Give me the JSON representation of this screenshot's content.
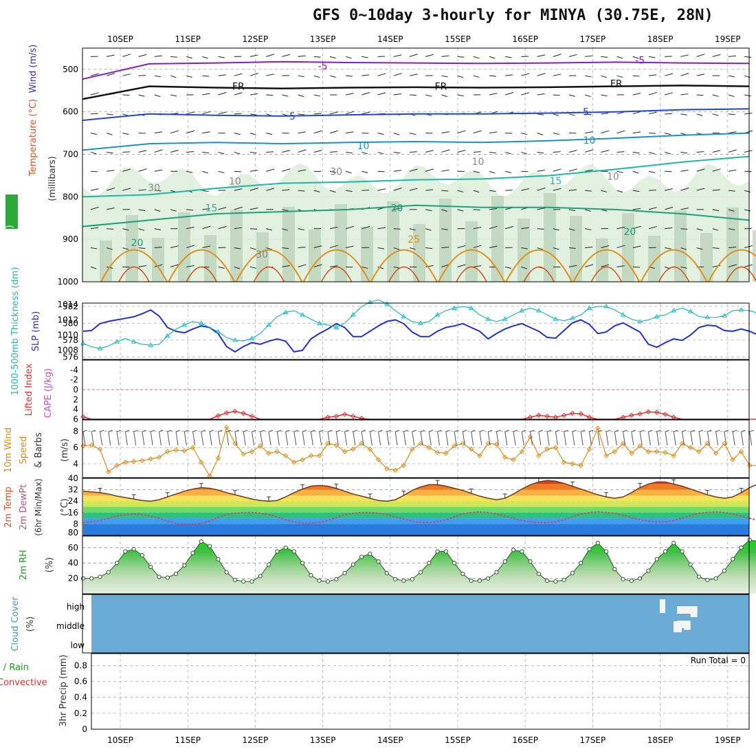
{
  "title": "GFS 0~10day 3-hourly for MINYA (30.75E, 28N)",
  "dates": [
    "10SEP",
    "11SEP",
    "12SEP",
    "13SEP",
    "14SEP",
    "15SEP",
    "16SEP",
    "17SEP",
    "18SEP",
    "19SEP"
  ],
  "chart_data": [
    {
      "id": "upper",
      "type": "contour",
      "title": "Upper air cross-section",
      "labels": {
        "wind": "Wind (m/s)",
        "temperature": "Temperature (°C)",
        "pressure": "(millibars)",
        "rh": "RH (%)"
      },
      "ylim": [
        1000,
        450
      ],
      "yticks": [
        500,
        600,
        700,
        800,
        900,
        1000
      ],
      "isotherms": [
        {
          "value": -5,
          "label": "-5",
          "color": "#8a1cb8",
          "pressure": [
            523,
            487,
            485,
            482,
            484,
            485,
            486,
            485,
            483,
            485,
            486
          ]
        },
        {
          "value": 0,
          "label": "FR",
          "color": "#111111",
          "pressure": [
            570,
            540,
            543,
            545,
            543,
            542,
            543,
            542,
            540,
            538,
            540
          ]
        },
        {
          "value": 5,
          "label": "5",
          "color": "#1e46d2",
          "pressure": [
            620,
            605,
            608,
            610,
            607,
            605,
            605,
            603,
            600,
            595,
            593
          ]
        },
        {
          "value": 10,
          "label": "10",
          "color": "#1a8fd0",
          "pressure": [
            690,
            675,
            672,
            675,
            672,
            670,
            672,
            668,
            662,
            655,
            650
          ]
        },
        {
          "value": 15,
          "label": "15",
          "color": "#1ab8a8",
          "pressure": [
            800,
            795,
            780,
            768,
            765,
            760,
            758,
            750,
            735,
            718,
            705
          ]
        },
        {
          "value": 20,
          "label": "20",
          "color": "#1ca07a",
          "pressure": [
            870,
            855,
            840,
            835,
            830,
            820,
            825,
            825,
            830,
            840,
            855
          ]
        }
      ],
      "contour_labels": [
        {
          "text": "-5",
          "x": 3.0,
          "p": 492,
          "color": "#8a1cb8"
        },
        {
          "text": "-5",
          "x": 7.7,
          "p": 478,
          "color": "#8a1cb8"
        },
        {
          "text": "FR",
          "x": 1.75,
          "p": 540,
          "color": "#111111"
        },
        {
          "text": "FR",
          "x": 4.75,
          "p": 540,
          "color": "#111111"
        },
        {
          "text": "FR",
          "x": 7.35,
          "p": 533,
          "color": "#111111"
        },
        {
          "text": "5",
          "x": 2.55,
          "p": 610,
          "color": "#1e46d2"
        },
        {
          "text": "5",
          "x": 6.9,
          "p": 600,
          "color": "#1e46d2"
        },
        {
          "text": "10",
          "x": 3.6,
          "p": 680,
          "color": "#1a8fd0"
        },
        {
          "text": "10",
          "x": 6.95,
          "p": 667,
          "color": "#1a8fd0"
        },
        {
          "text": "15",
          "x": 1.35,
          "p": 826,
          "color": "#1ab8a8"
        },
        {
          "text": "15",
          "x": 6.45,
          "p": 762,
          "color": "#1ab8a8"
        },
        {
          "text": "20",
          "x": 0.25,
          "p": 908,
          "color": "#1ca07a"
        },
        {
          "text": "20",
          "x": 4.1,
          "p": 826,
          "color": "#1ca07a"
        },
        {
          "text": "20",
          "x": 7.55,
          "p": 882,
          "color": "#1ca07a"
        },
        {
          "text": "25",
          "x": 4.35,
          "p": 900,
          "color": "#e0901a"
        },
        {
          "text": "30",
          "x": 0.5,
          "p": 778,
          "color": "#888888"
        },
        {
          "text": "30",
          "x": 3.2,
          "p": 740,
          "color": "#888888"
        },
        {
          "text": "30",
          "x": 2.1,
          "p": 935,
          "color": "#888888"
        },
        {
          "text": "10",
          "x": 1.7,
          "p": 763,
          "color": "#888888"
        },
        {
          "text": "10",
          "x": 5.3,
          "p": 717,
          "color": "#888888"
        },
        {
          "text": "10",
          "x": 7.3,
          "p": 752,
          "color": "#888888"
        }
      ]
    },
    {
      "id": "slp",
      "type": "line",
      "labels": {
        "thickness": "1000-500mb Thickness (dm)",
        "slp": "SLP (mb)"
      },
      "left_yticks": [
        576,
        578,
        580,
        582
      ],
      "right_yticks": [
        1008,
        1010,
        1012,
        1014
      ],
      "slp": [
        1010.5,
        1010.6,
        1011.5,
        1011.8,
        1012.0,
        1012.2,
        1012.4,
        1012.8,
        1013.3,
        1012.5,
        1011.0,
        1010.5,
        1010.3,
        1010.8,
        1011.2,
        1011.0,
        1010.2,
        1008.5,
        1007.8,
        1008.5,
        1009.0,
        1008.8,
        1009.2,
        1009.5,
        1009.2,
        1007.8,
        1008.0,
        1009.5,
        1010.2,
        1010.8,
        1011.5,
        1011.0,
        1009.8,
        1009.8,
        1010.5,
        1011.2,
        1011.8,
        1012.0,
        1011.5,
        1010.4,
        1009.8,
        1009.8,
        1010.5,
        1011.0,
        1011.2,
        1011.5,
        1011.0,
        1010.5,
        1009.5,
        1010.2,
        1010.8,
        1011.2,
        1011.5,
        1011.0,
        1010.5,
        1009.7,
        1009.6,
        1010.6,
        1011.6,
        1012.0,
        1011.4,
        1010.2,
        1010.4,
        1011.2,
        1011.6,
        1011.0,
        1010.4,
        1008.8,
        1008.4,
        1009.0,
        1009.5,
        1009.3,
        1010.0,
        1011.0,
        1011.3,
        1011.2,
        1010.6,
        1010.5,
        1010.8,
        1010.5,
        1010.0,
        1008.8,
        1008.3,
        1009.2,
        1009.8,
        1010.5,
        1011.0,
        1011.6,
        1012.0,
        1011.8,
        1011.0,
        1009.8,
        1009.5,
        1010.0,
        1010.3,
        1010.1,
        1009.5,
        1009.8,
        1010.0,
        1010.6,
        1011.2,
        1011.2,
        1010.8,
        1010.5,
        1009.3,
        1008.8,
        1009.5,
        1010.0,
        1009.5,
        1009.4,
        1008.6,
        1009.2,
        1009.8,
        1010.5
      ],
      "thickness": [
        577.6,
        577.2,
        577.0,
        577.3,
        577.8,
        578.2,
        577.8,
        577.5,
        577.4,
        577.5,
        578.5,
        579.3,
        579.8,
        580.2,
        580.0,
        579.5,
        579.0,
        578.3,
        578.0,
        577.9,
        578.2,
        578.8,
        579.8,
        580.8,
        581.3,
        581.5,
        581.0,
        580.5,
        580.0,
        579.8,
        579.5,
        580.0,
        581.0,
        582.0,
        582.5,
        582.8,
        582.3,
        581.5,
        580.8,
        580.2,
        580.0,
        580.2,
        581.0,
        581.5,
        581.8,
        582.0,
        581.8,
        581.0,
        580.5,
        580.2,
        580.5,
        581.0,
        581.5,
        581.8,
        581.5,
        581.0,
        580.5,
        580.3,
        580.6,
        581.0,
        581.8,
        582.0,
        582.0,
        581.6,
        581.0,
        580.5,
        580.2,
        580.4,
        580.8,
        581.0,
        581.5,
        581.8,
        581.4,
        580.8,
        580.7,
        580.7,
        580.9,
        581.5,
        581.6,
        581.5,
        581.2,
        580.6,
        580.8,
        581.0,
        581.6,
        581.8,
        582.0,
        582.0,
        581.2,
        580.8,
        580.5,
        580.0,
        580.3,
        580.8,
        581.5,
        581.8,
        581.5,
        581.0,
        580.6,
        580.5,
        580.8,
        581.5,
        582.0,
        582.3,
        582.2,
        581.8,
        581.5,
        581.0,
        580.8,
        580.9,
        581.5,
        582.0,
        582.4,
        582.8
      ]
    },
    {
      "id": "cape",
      "type": "line",
      "labels": {
        "lifted_index": "Lifted Index",
        "cape": "CAPE (J/kg)"
      },
      "yticks": [
        -4,
        -2,
        0,
        2,
        4,
        6
      ],
      "ylim": [
        -6,
        6
      ],
      "lifted_index": [
        5.5,
        6,
        6,
        6,
        6,
        6,
        6,
        6,
        6,
        6,
        6,
        6,
        6,
        6,
        6,
        6,
        5.3,
        4.7,
        4.4,
        4.8,
        5.4,
        6,
        6,
        6,
        6,
        6,
        6,
        6,
        6,
        5.6,
        5.4,
        5.0,
        5.4,
        5.8,
        6,
        6,
        6,
        6,
        6,
        6,
        6,
        6,
        6,
        6,
        6,
        6,
        6,
        6,
        6,
        6,
        6,
        6,
        6,
        5.6,
        5.2,
        5.4,
        5.6,
        5.2,
        4.8,
        4.9,
        5.6,
        6,
        6,
        6,
        5.6,
        5.2,
        4.9,
        4.5,
        4.6,
        5.0,
        5.6,
        6,
        6,
        6,
        6,
        6,
        6,
        6,
        6,
        6,
        6,
        6,
        6,
        6,
        6,
        6,
        6,
        6,
        6,
        6,
        6,
        6,
        6,
        6,
        6,
        6,
        6,
        6,
        6,
        6,
        6,
        6,
        6,
        6,
        6,
        6,
        6,
        6,
        6,
        6,
        5.3,
        5.0,
        4.6,
        4.5,
        4.9
      ]
    },
    {
      "id": "wind10m",
      "type": "line",
      "labels": {
        "title": "10m Wind Speed & Barbs",
        "unit": "(m/s)"
      },
      "yticks": [
        4,
        6,
        8
      ],
      "ylim": [
        2,
        9.5
      ],
      "speed": [
        6.2,
        6.3,
        5.8,
        3.0,
        3.8,
        4.2,
        4.3,
        4.4,
        4.6,
        4.8,
        5.5,
        5.7,
        5.6,
        6.0,
        4.2,
        2.5,
        4.7,
        8.5,
        6.5,
        5.2,
        5.5,
        6.2,
        5.3,
        5.5,
        5.0,
        4.2,
        4.5,
        5.0,
        5.0,
        6.5,
        6.3,
        5.5,
        5.8,
        6.5,
        5.8,
        4.5,
        3.4,
        3.2,
        3.8,
        5.8,
        6.5,
        6.0,
        5.4,
        5.3,
        6.2,
        6.5,
        5.8,
        5.0,
        6.5,
        6.4,
        4.8,
        4.5,
        5.5,
        7.3,
        5.0,
        5.8,
        6.0,
        4.2,
        4.0,
        3.8,
        5.8,
        8.4,
        5.0,
        5.5,
        6.5,
        5.3,
        6.2,
        5.5,
        5.5,
        5.4,
        5.0,
        6.5,
        6.0,
        5.5,
        6.5,
        5.3,
        6.5,
        4.5,
        5.5,
        3.8,
        3.8,
        5.3,
        9.0,
        6.5,
        5.5,
        6.8,
        4.8,
        5.5,
        4.6,
        6.0,
        5.2,
        5.0,
        5.5,
        4.2,
        6.0,
        6.0,
        5.8,
        4.5,
        5.0,
        5.8,
        5.5,
        4.5,
        6.2,
        5.5,
        3.5,
        4.6,
        5.2,
        5.8,
        6.3,
        6.0,
        6.3,
        6.0,
        6.2,
        6.0,
        5.9
      ]
    },
    {
      "id": "temp2m",
      "type": "area",
      "labels": {
        "title": "2m Temp 2m DewPt (6hr Min/Max)",
        "unit": "(°C)"
      },
      "yticks": [
        8,
        16,
        24,
        32,
        40
      ],
      "ylim": [
        0,
        40
      ],
      "temperature": [
        31.0,
        30.5,
        30.0,
        29.0,
        27.5,
        26.5,
        25.5,
        24.5,
        24.0,
        25.0,
        27.0,
        29.0,
        31.0,
        32.5,
        33.5,
        33.0,
        31.8,
        30.0,
        28.5,
        27.0,
        25.5,
        24.5,
        24.0,
        24.5,
        27.0,
        30.0,
        32.5,
        34.5,
        35.0,
        34.5,
        33.0,
        31.0,
        29.0,
        27.5,
        26.0,
        24.5,
        24.0,
        25.0,
        28.0,
        31.5,
        34.0,
        35.5,
        35.5,
        34.5,
        33.0,
        31.5,
        29.5,
        27.5,
        26.0,
        25.0,
        26.0,
        29.0,
        32.5,
        35.5,
        37.5,
        38.5,
        38.0,
        36.5,
        34.5,
        32.5,
        30.5,
        28.5,
        27.0,
        26.0,
        27.0,
        30.0,
        33.5,
        36.0,
        37.5,
        37.5,
        36.0,
        34.5,
        32.5,
        30.5,
        28.5,
        27.0,
        26.0,
        27.0,
        30.0,
        33.5,
        36.0,
        37.5,
        37.0,
        36.0,
        34.0,
        32.0,
        30.0,
        28.0,
        26.5,
        25.0,
        26.0,
        29.0,
        32.0,
        34.5,
        35.5,
        35.0,
        33.5,
        32.0,
        30.0,
        28.0,
        26.5,
        25.0,
        26.5,
        29.5,
        32.0,
        34.0,
        35.0,
        34.5,
        33.0,
        31.5,
        29.5,
        28.0,
        26.5,
        25.5,
        25.5,
        25.0
      ],
      "dewpoint": [
        9.0,
        9.5,
        10.5,
        12.0,
        13.5,
        14.5,
        15.0,
        14.5,
        13.5,
        12.0,
        10.0,
        8.5,
        8.0,
        8.0,
        8.5,
        10.0,
        12.5,
        14.5,
        15.5,
        16.0,
        16.0,
        15.5,
        14.5,
        13.0,
        11.0,
        9.5,
        8.5,
        8.5,
        9.0,
        10.5,
        12.5,
        14.5,
        15.5,
        16.0,
        16.0,
        15.5,
        14.5,
        13.0,
        11.5,
        10.0,
        9.0,
        9.0,
        9.5,
        11.0,
        13.0,
        15.0,
        16.0,
        16.5,
        16.0,
        15.0,
        13.5,
        12.0,
        10.5,
        9.5,
        9.0,
        9.0,
        9.5,
        11.0,
        13.0,
        15.0,
        16.0,
        16.5,
        16.0,
        15.5,
        14.0,
        12.5,
        11.0,
        10.0,
        9.5,
        9.5,
        10.5,
        12.0,
        14.0,
        15.5,
        16.0,
        16.5,
        16.0,
        15.0,
        13.5,
        12.0,
        10.5,
        9.5,
        9.5,
        10.0,
        11.5,
        13.5,
        15.0,
        16.0,
        16.5,
        16.0,
        15.0,
        14.0,
        12.5,
        11.0,
        10.0,
        10.0,
        10.5,
        12.0,
        14.0,
        15.5,
        16.5,
        17.0,
        16.5,
        15.5,
        14.0,
        12.5,
        11.0,
        10.5,
        11.0,
        12.5,
        14.5,
        16.5,
        18.0,
        18.0,
        17.5
      ]
    },
    {
      "id": "rh2m",
      "type": "area",
      "labels": {
        "title": "2m RH",
        "unit": "(%)"
      },
      "yticks": [
        20,
        40,
        60
      ],
      "ylim": [
        0,
        75
      ],
      "rh": [
        20,
        20,
        22,
        28,
        40,
        55,
        58,
        50,
        35,
        22,
        21,
        26,
        37,
        53,
        68,
        62,
        45,
        28,
        18,
        16,
        16,
        23,
        38,
        55,
        60,
        55,
        40,
        24,
        17,
        16,
        19,
        27,
        38,
        48,
        52,
        42,
        27,
        19,
        17,
        19,
        28,
        40,
        55,
        55,
        40,
        26,
        17,
        17,
        20,
        28,
        42,
        57,
        55,
        42,
        26,
        17,
        16,
        18,
        27,
        40,
        58,
        66,
        55,
        32,
        19,
        17,
        20,
        30,
        45,
        55,
        66,
        55,
        38,
        22,
        18,
        20,
        30,
        45,
        60,
        70,
        68,
        48,
        25,
        18,
        17,
        21,
        33,
        48,
        62,
        68,
        60,
        40,
        25,
        18,
        20,
        24,
        33,
        45,
        58,
        63,
        52,
        35,
        22,
        17,
        18,
        22,
        30,
        40,
        52,
        68,
        73,
        62,
        38,
        22
      ]
    },
    {
      "id": "cloud",
      "type": "heatmap",
      "labels": {
        "title": "Cloud Cover",
        "unit": "(%)",
        "levels": [
          "high",
          "middle",
          "low"
        ]
      },
      "blocks": [
        {
          "level": "high",
          "start": 8.25,
          "end": 8.55,
          "cover": 10
        },
        {
          "level": "high",
          "start": 8.45,
          "end": 8.55,
          "cover": 20
        },
        {
          "level": "middle",
          "start": 8.25,
          "end": 8.35,
          "cover": 10
        },
        {
          "level": "middle",
          "start": 8.35,
          "end": 8.45,
          "cover": 15
        }
      ]
    },
    {
      "id": "precip",
      "type": "bar",
      "labels": {
        "title": "Total / Rain Convective",
        "unit": "3hr Precip (mm)",
        "total": "Run Total = 0"
      },
      "yticks": [
        0,
        0.2,
        0.4,
        0.6,
        0.8
      ],
      "ylim": [
        0,
        0.95
      ],
      "values": []
    }
  ]
}
